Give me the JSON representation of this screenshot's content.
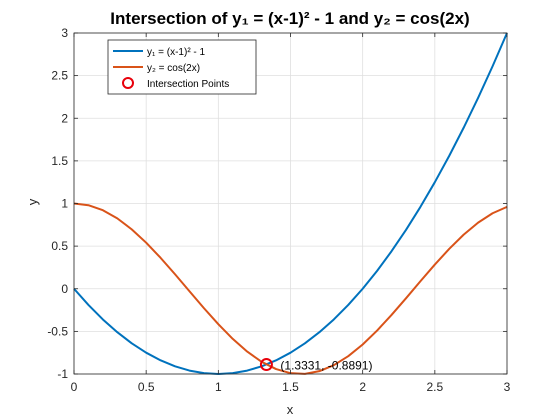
{
  "chart_data": {
    "type": "line",
    "title": "Intersection of y₁ = (x-1)² - 1 and y₂ = cos(2x)",
    "xlabel": "x",
    "ylabel": "y",
    "xlim": [
      0,
      3
    ],
    "ylim": [
      -1,
      3
    ],
    "xticks": [
      0,
      0.5,
      1,
      1.5,
      2,
      2.5,
      3
    ],
    "yticks": [
      -1,
      -0.5,
      0,
      0.5,
      1,
      1.5,
      2,
      2.5,
      3
    ],
    "xtick_labels": [
      "0",
      "0.5",
      "1",
      "1.5",
      "2",
      "2.5",
      "3"
    ],
    "ytick_labels": [
      "-1",
      "-0.5",
      "0",
      "0.5",
      "1",
      "1.5",
      "2",
      "2.5",
      "3"
    ],
    "grid": true,
    "legend_position": "top-left",
    "series": [
      {
        "name": "y₁ = (x-1)² - 1",
        "color": "#0072BD",
        "x": [
          0,
          0.1,
          0.2,
          0.3,
          0.4,
          0.5,
          0.6,
          0.7,
          0.8,
          0.9,
          1.0,
          1.1,
          1.2,
          1.3,
          1.4,
          1.5,
          1.6,
          1.7,
          1.8,
          1.9,
          2.0,
          2.1,
          2.2,
          2.3,
          2.4,
          2.5,
          2.6,
          2.7,
          2.8,
          2.9,
          3.0
        ],
        "y": [
          0,
          -0.19,
          -0.36,
          -0.51,
          -0.64,
          -0.75,
          -0.84,
          -0.91,
          -0.96,
          -0.99,
          -1.0,
          -0.99,
          -0.96,
          -0.91,
          -0.84,
          -0.75,
          -0.64,
          -0.51,
          -0.36,
          -0.19,
          0,
          0.21,
          0.44,
          0.69,
          0.96,
          1.25,
          1.56,
          1.89,
          2.24,
          2.61,
          3.0
        ]
      },
      {
        "name": "y₂ = cos(2x)",
        "color": "#D95319",
        "x": [
          0,
          0.1,
          0.2,
          0.3,
          0.4,
          0.5,
          0.6,
          0.7,
          0.8,
          0.9,
          1.0,
          1.1,
          1.2,
          1.3,
          1.4,
          1.5,
          1.6,
          1.7,
          1.8,
          1.9,
          2.0,
          2.1,
          2.2,
          2.3,
          2.4,
          2.5,
          2.6,
          2.7,
          2.8,
          2.9,
          3.0
        ],
        "y": [
          1.0,
          0.9801,
          0.9211,
          0.8253,
          0.6967,
          0.5403,
          0.3624,
          0.17,
          -0.0292,
          -0.2272,
          -0.4161,
          -0.5885,
          -0.7374,
          -0.8569,
          -0.9422,
          -0.99,
          -0.9983,
          -0.9668,
          -0.8968,
          -0.791,
          -0.6536,
          -0.4903,
          -0.3073,
          -0.1122,
          0.0875,
          0.2837,
          0.4685,
          0.6347,
          0.7756,
          0.8855,
          0.9602
        ]
      }
    ],
    "intersections": {
      "name": "Intersection Points",
      "color": "#E8000B",
      "points": [
        {
          "x": 1.3331,
          "y": -0.8891,
          "label": "(1.3331, -0.8891)"
        }
      ]
    }
  }
}
